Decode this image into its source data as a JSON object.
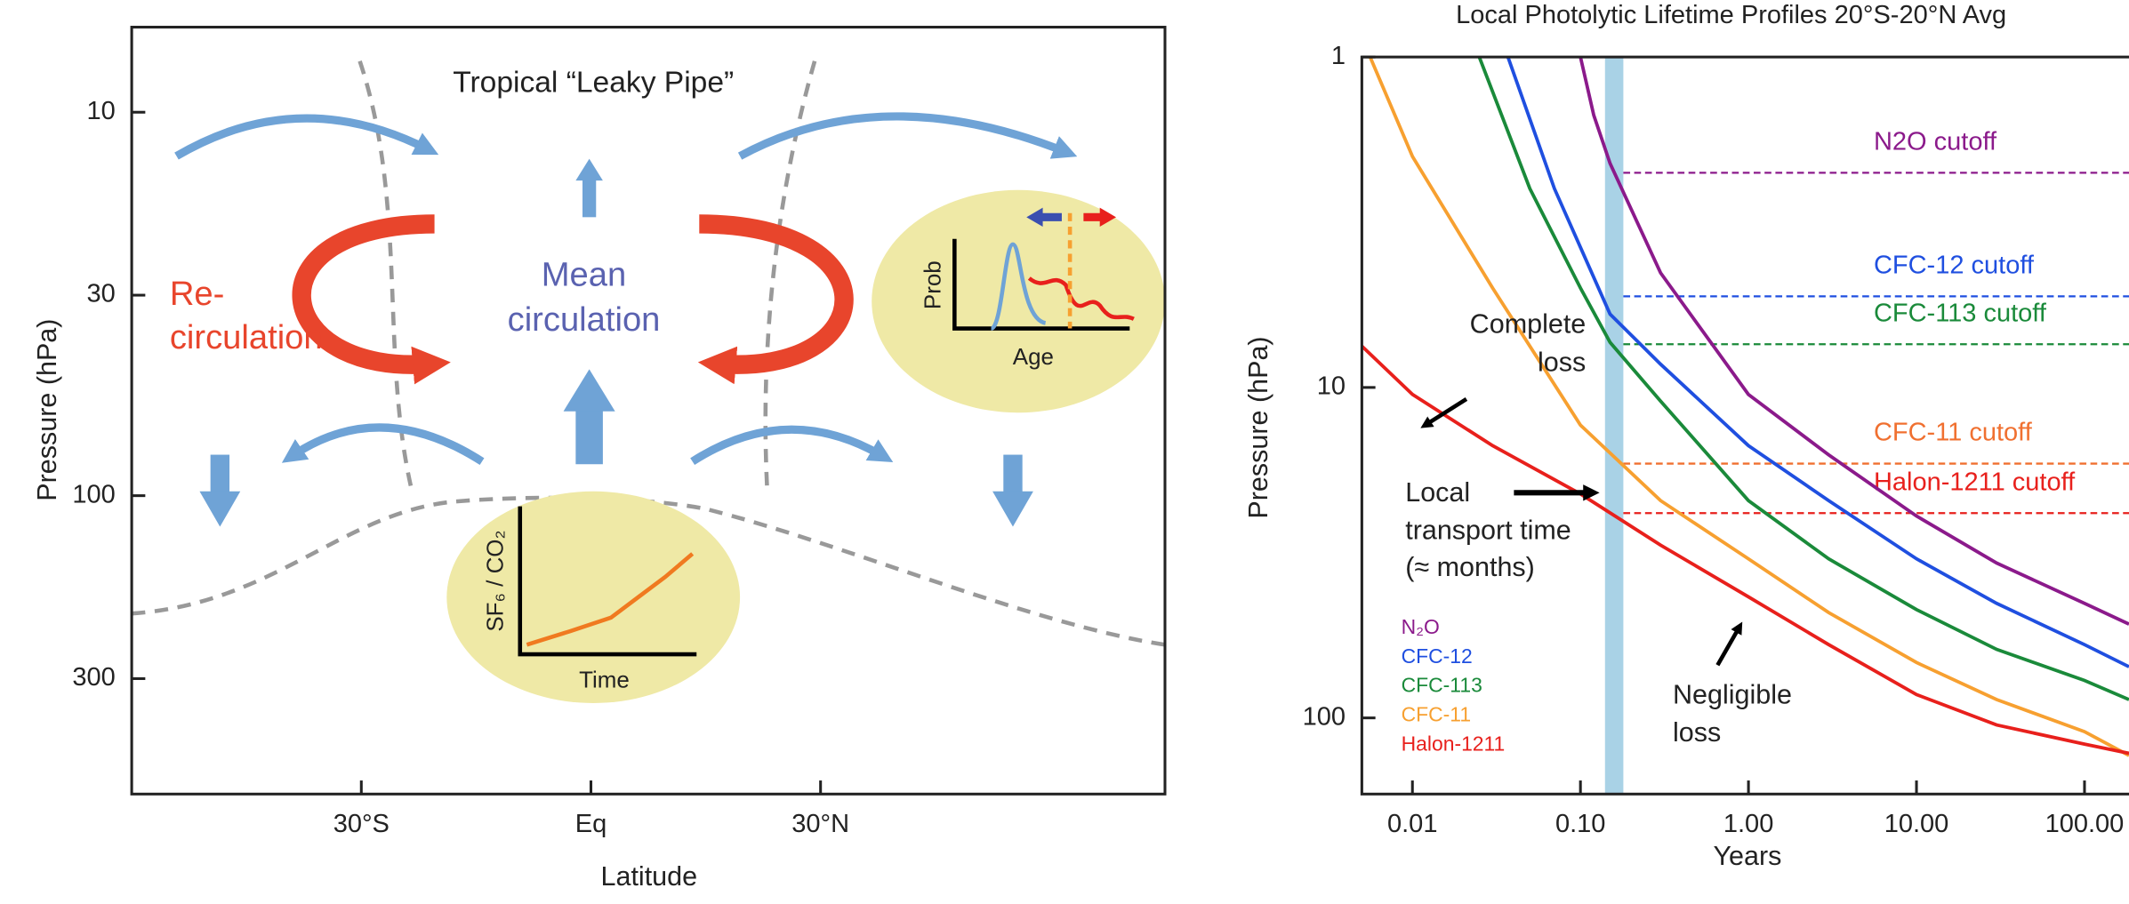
{
  "chart_data": [
    {
      "type": "diagram",
      "title": "Tropical “Leaky Pipe”",
      "xlabel": "Latitude",
      "ylabel": "Pressure (hPa)",
      "xlim": [
        -60,
        75
      ],
      "xticks": [
        {
          "value": -30,
          "label": "30°S"
        },
        {
          "value": 0,
          "label": "Eq"
        },
        {
          "value": 30,
          "label": "30°N"
        }
      ],
      "ylim": [
        600,
        6
      ],
      "yticks": [
        10,
        30,
        100,
        300
      ],
      "ylog": true,
      "labels": {
        "recirculation": [
          "Re-",
          "circulation"
        ],
        "mean_circulation": [
          "Mean",
          "circulation"
        ],
        "age_inset": {
          "ylabel": "Prob",
          "xlabel": "Age"
        },
        "tracer_inset": {
          "ylabel": "SF₆ / CO₂",
          "xlabel": "Time"
        }
      }
    },
    {
      "type": "line",
      "title": "Local Photolytic Lifetime Profiles  20°S-20°N Avg",
      "xlabel": "Years",
      "ylabel": "Pressure (hPa)",
      "xlog": true,
      "ylog": true,
      "xlim": [
        0.005,
        184
      ],
      "ylim": [
        170,
        1
      ],
      "xticks": [
        0.01,
        {
          "value": 0.1,
          "label": "0.10"
        },
        {
          "value": 1,
          "label": "1.00"
        },
        {
          "value": 10,
          "label": "10.00"
        },
        {
          "value": 100,
          "label": "100.00"
        }
      ],
      "yticks": [
        1,
        10,
        100
      ],
      "band": {
        "x": [
          0.14,
          0.18
        ],
        "color": "#a9d2e6"
      },
      "series": [
        {
          "name": "N₂O",
          "color": "#8b1a8b",
          "x": [
            0.1,
            0.12,
            0.15,
            0.3,
            1,
            3,
            10,
            30,
            100,
            184
          ],
          "values": [
            1,
            1.5,
            2.1,
            4.5,
            10.5,
            16,
            24.5,
            34,
            45,
            52
          ]
        },
        {
          "name": "CFC-12",
          "color": "#1f4fe0",
          "x": [
            0.037,
            0.07,
            0.15,
            0.3,
            1,
            3,
            10,
            30,
            100,
            184
          ],
          "values": [
            1,
            2.5,
            6,
            8.5,
            15,
            22,
            33,
            45,
            60,
            70
          ]
        },
        {
          "name": "CFC-113",
          "color": "#1a8a3a",
          "x": [
            0.025,
            0.05,
            0.1,
            0.15,
            0.3,
            1,
            3,
            10,
            30,
            100,
            184
          ],
          "values": [
            1,
            2.5,
            5,
            7.3,
            11,
            22,
            33,
            47,
            62,
            77,
            88
          ]
        },
        {
          "name": "CFC-11",
          "color": "#f7a030",
          "x": [
            0.0056,
            0.01,
            0.03,
            0.1,
            0.3,
            1,
            3,
            10,
            30,
            100,
            184
          ],
          "values": [
            1,
            2,
            5,
            13,
            22,
            33,
            48,
            68,
            88,
            110,
            130
          ]
        },
        {
          "name": "Halon-1211",
          "color": "#e8201c",
          "x": [
            0.005,
            0.01,
            0.03,
            0.1,
            0.3,
            1,
            3,
            10,
            30,
            100,
            184
          ],
          "values": [
            7.5,
            10.5,
            15,
            21,
            30,
            43,
            60,
            85,
            105,
            120,
            128
          ]
        }
      ],
      "cutoffs": [
        {
          "name": "N2O cutoff",
          "color": "#8b1a8b",
          "value": 2.24
        },
        {
          "name": "CFC-12 cutoff",
          "color": "#1f4fe0",
          "value": 5.3
        },
        {
          "name": "CFC-113 cutoff",
          "color": "#1a8a3a",
          "value": 7.4
        },
        {
          "name": "CFC-11 cutoff",
          "color": "#f07030",
          "value": 17
        },
        {
          "name": "Halon-1211 cutoff",
          "color": "#e8201c",
          "value": 24
        }
      ],
      "annotations": [
        {
          "text": [
            "Complete",
            "loss"
          ]
        },
        {
          "text": [
            "Local",
            "transport time",
            "(≈ months)"
          ]
        },
        {
          "text": [
            "Negligible",
            "loss"
          ]
        }
      ]
    }
  ]
}
